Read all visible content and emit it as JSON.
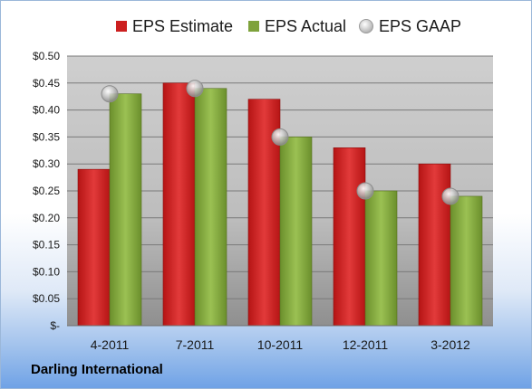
{
  "chart_data": {
    "type": "bar",
    "title": "",
    "xlabel": "",
    "ylabel": "",
    "categories": [
      "4-2011",
      "7-2011",
      "10-2011",
      "12-2011",
      "3-2012"
    ],
    "series": [
      {
        "name": "EPS Estimate",
        "kind": "bar",
        "color": "#cc1f1f",
        "values": [
          0.29,
          0.45,
          0.42,
          0.33,
          0.3
        ]
      },
      {
        "name": "EPS Actual",
        "kind": "bar",
        "color": "#7ea23b",
        "values": [
          0.43,
          0.44,
          0.35,
          0.25,
          0.24
        ]
      },
      {
        "name": "EPS GAAP",
        "kind": "marker",
        "color": "#b8b8b8",
        "values": [
          0.43,
          0.44,
          0.35,
          0.25,
          0.24
        ]
      }
    ],
    "ylim": [
      0,
      0.5
    ],
    "yticks": [
      0,
      0.05,
      0.1,
      0.15,
      0.2,
      0.25,
      0.3,
      0.35,
      0.4,
      0.45,
      0.5
    ],
    "ytick_labels": [
      "$-",
      "$0.05",
      "$0.10",
      "$0.15",
      "$0.20",
      "$0.25",
      "$0.30",
      "$0.35",
      "$0.40",
      "$0.45",
      "$0.50"
    ],
    "grid": true,
    "legend_position": "top"
  },
  "company": "Darling International"
}
